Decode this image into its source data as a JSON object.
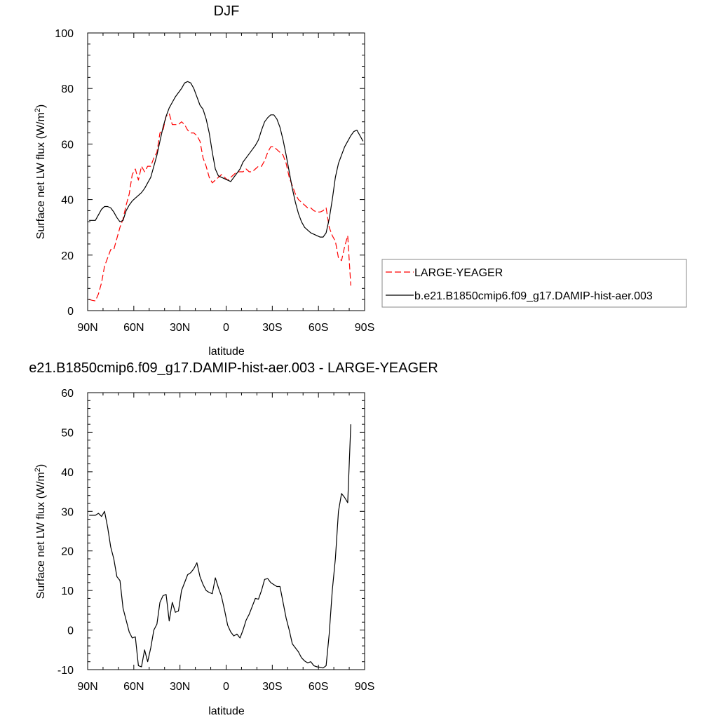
{
  "chart_data": [
    {
      "type": "line",
      "title": "DJF",
      "xlabel": "latitude",
      "ylabel": "Surface net LW flux (W/m²)",
      "ylabel_main": "Surface net LW flux (W/m",
      "ylabel_sup": "2",
      "ylabel_end": ")",
      "xlim": [
        90,
        -90
      ],
      "ylim": [
        0,
        100
      ],
      "x_ticks": [
        90,
        60,
        30,
        0,
        -30,
        -60,
        -90
      ],
      "x_tick_labels": [
        "90N",
        "60N",
        "30N",
        "0",
        "30S",
        "60S",
        "90S"
      ],
      "y_ticks": [
        0,
        20,
        40,
        60,
        80,
        100
      ],
      "y_tick_labels": [
        "0",
        "20",
        "40",
        "60",
        "80",
        "100"
      ],
      "legend_position": "right",
      "series": [
        {
          "name": "LARGE-YEAGER",
          "style": "dashed",
          "color": "#ff0000",
          "points": [
            [
              89,
              4
            ],
            [
              87,
              3.7
            ],
            [
              85,
              3.5
            ],
            [
              83,
              6
            ],
            [
              81,
              10
            ],
            [
              79,
              16
            ],
            [
              77,
              19
            ],
            [
              75,
              22
            ],
            [
              73,
              22
            ],
            [
              71,
              26
            ],
            [
              69,
              30
            ],
            [
              67,
              33
            ],
            [
              65,
              38
            ],
            [
              63,
              42
            ],
            [
              61,
              49
            ],
            [
              59,
              51
            ],
            [
              57,
              47
            ],
            [
              55,
              52
            ],
            [
              53,
              50
            ],
            [
              51,
              52
            ],
            [
              49,
              52
            ],
            [
              47,
              55
            ],
            [
              45,
              57
            ],
            [
              43,
              64
            ],
            [
              41,
              65
            ],
            [
              39,
              70
            ],
            [
              37,
              71
            ],
            [
              35,
              67
            ],
            [
              33,
              67
            ],
            [
              31,
              67
            ],
            [
              29,
              68
            ],
            [
              27,
              67
            ],
            [
              25,
              65
            ],
            [
              23,
              64
            ],
            [
              21,
              64
            ],
            [
              19,
              63
            ],
            [
              17,
              61
            ],
            [
              15,
              55
            ],
            [
              13,
              52
            ],
            [
              11,
              48
            ],
            [
              9,
              46
            ],
            [
              7,
              47
            ],
            [
              5,
              48
            ],
            [
              3,
              49
            ],
            [
              1,
              48
            ],
            [
              -1,
              47
            ],
            [
              -3,
              48
            ],
            [
              -5,
              49
            ],
            [
              -7,
              50
            ],
            [
              -9,
              50
            ],
            [
              -11,
              50
            ],
            [
              -13,
              51
            ],
            [
              -15,
              50
            ],
            [
              -17,
              50
            ],
            [
              -19,
              51
            ],
            [
              -21,
              52
            ],
            [
              -23,
              52
            ],
            [
              -25,
              54
            ],
            [
              -27,
              57
            ],
            [
              -29,
              59
            ],
            [
              -31,
              59
            ],
            [
              -33,
              58
            ],
            [
              -35,
              57
            ],
            [
              -37,
              56
            ],
            [
              -39,
              53
            ],
            [
              -41,
              48
            ],
            [
              -43,
              45
            ],
            [
              -45,
              42
            ],
            [
              -47,
              40
            ],
            [
              -49,
              39
            ],
            [
              -51,
              38
            ],
            [
              -53,
              37
            ],
            [
              -55,
              37
            ],
            [
              -57,
              36
            ],
            [
              -59,
              35.5
            ],
            [
              -61,
              35.5
            ],
            [
              -63,
              36
            ],
            [
              -65,
              37
            ],
            [
              -67,
              30
            ],
            [
              -69,
              27
            ],
            [
              -71,
              25
            ],
            [
              -73,
              19
            ],
            [
              -75,
              18
            ],
            [
              -77,
              23
            ],
            [
              -79,
              27
            ],
            [
              -81,
              9
            ]
          ]
        },
        {
          "name": "b.e21.B1850cmip6.f09_g17.DAMIP-hist-aer.003",
          "style": "solid",
          "color": "#000000",
          "points": [
            [
              89,
              32.5
            ],
            [
              85,
              32.5
            ],
            [
              83,
              34.5
            ],
            [
              81,
              36.5
            ],
            [
              79,
              37.5
            ],
            [
              77,
              37.5
            ],
            [
              75,
              37
            ],
            [
              73,
              35.5
            ],
            [
              71,
              33.5
            ],
            [
              69,
              32
            ],
            [
              67,
              32.5
            ],
            [
              65,
              36
            ],
            [
              63,
              38
            ],
            [
              61,
              39.5
            ],
            [
              59,
              40.5
            ],
            [
              57,
              41.5
            ],
            [
              55,
              42.5
            ],
            [
              53,
              44
            ],
            [
              51,
              46
            ],
            [
              49,
              48
            ],
            [
              47,
              52
            ],
            [
              45,
              56
            ],
            [
              43,
              61
            ],
            [
              41,
              66
            ],
            [
              39,
              70
            ],
            [
              37,
              73
            ],
            [
              35,
              75
            ],
            [
              33,
              77
            ],
            [
              31,
              78.5
            ],
            [
              29,
              80
            ],
            [
              27,
              82
            ],
            [
              25,
              82.5
            ],
            [
              23,
              82
            ],
            [
              21,
              80
            ],
            [
              19,
              77
            ],
            [
              17,
              74
            ],
            [
              15,
              72.5
            ],
            [
              13,
              69
            ],
            [
              11,
              64
            ],
            [
              9,
              57
            ],
            [
              7,
              51
            ],
            [
              5,
              48.5
            ],
            [
              3,
              48
            ],
            [
              1,
              47.5
            ],
            [
              -1,
              47
            ],
            [
              -3,
              46.5
            ],
            [
              -5,
              48
            ],
            [
              -7,
              49.5
            ],
            [
              -9,
              51
            ],
            [
              -11,
              53.5
            ],
            [
              -13,
              55
            ],
            [
              -15,
              56.5
            ],
            [
              -17,
              58
            ],
            [
              -19,
              59.5
            ],
            [
              -21,
              61.5
            ],
            [
              -23,
              65
            ],
            [
              -25,
              68
            ],
            [
              -27,
              69.5
            ],
            [
              -29,
              70.5
            ],
            [
              -31,
              70.5
            ],
            [
              -33,
              69
            ],
            [
              -35,
              66
            ],
            [
              -37,
              61.5
            ],
            [
              -39,
              56
            ],
            [
              -41,
              50
            ],
            [
              -43,
              44
            ],
            [
              -45,
              39
            ],
            [
              -47,
              35
            ],
            [
              -49,
              32
            ],
            [
              -51,
              30
            ],
            [
              -53,
              29
            ],
            [
              -55,
              28
            ],
            [
              -57,
              27.5
            ],
            [
              -59,
              27
            ],
            [
              -61,
              26.5
            ],
            [
              -63,
              26.5
            ],
            [
              -65,
              28
            ],
            [
              -67,
              33
            ],
            [
              -69,
              40
            ],
            [
              -71,
              48
            ],
            [
              -73,
              53
            ],
            [
              -75,
              56
            ],
            [
              -77,
              59
            ],
            [
              -79,
              61
            ],
            [
              -81,
              63
            ],
            [
              -83,
              64.5
            ],
            [
              -85,
              65
            ],
            [
              -87,
              63
            ],
            [
              -89,
              61
            ]
          ]
        }
      ]
    },
    {
      "type": "line",
      "title": "e21.B1850cmip6.f09_g17.DAMIP-hist-aer.003 - LARGE-YEAGER",
      "xlabel": "latitude",
      "ylabel": "Surface net LW flux (W/m²)",
      "ylabel_main": "Surface net LW flux (W/m",
      "ylabel_sup": "2",
      "ylabel_end": ")",
      "xlim": [
        90,
        -90
      ],
      "ylim": [
        -10,
        60
      ],
      "x_ticks": [
        90,
        60,
        30,
        0,
        -30,
        -60,
        -90
      ],
      "x_tick_labels": [
        "90N",
        "60N",
        "30N",
        "0",
        "30S",
        "60S",
        "90S"
      ],
      "y_ticks": [
        -10,
        0,
        10,
        20,
        30,
        40,
        50,
        60
      ],
      "y_tick_labels": [
        "-10",
        "0",
        "10",
        "20",
        "30",
        "40",
        "50",
        "60"
      ],
      "series": [
        {
          "style": "solid",
          "color": "#000000",
          "points": [
            [
              89,
              29
            ],
            [
              85,
              29
            ],
            [
              83,
              29.5
            ],
            [
              81,
              28.7
            ],
            [
              79,
              30
            ],
            [
              77,
              26
            ],
            [
              75,
              21
            ],
            [
              73,
              18
            ],
            [
              71,
              13.5
            ],
            [
              69,
              12.5
            ],
            [
              67,
              5.5
            ],
            [
              65,
              2.5
            ],
            [
              63,
              -0.5
            ],
            [
              61,
              -2
            ],
            [
              59,
              -1.7
            ],
            [
              57,
              -9
            ],
            [
              55,
              -9.3
            ],
            [
              53,
              -5
            ],
            [
              51,
              -8
            ],
            [
              49,
              -4.5
            ],
            [
              47,
              0
            ],
            [
              45,
              1.5
            ],
            [
              43,
              7
            ],
            [
              41,
              8.7
            ],
            [
              39,
              9
            ],
            [
              37,
              2.3
            ],
            [
              35,
              7
            ],
            [
              33,
              4.5
            ],
            [
              31,
              4.8
            ],
            [
              29,
              10
            ],
            [
              27,
              12
            ],
            [
              25,
              14
            ],
            [
              23,
              14.5
            ],
            [
              21,
              15.5
            ],
            [
              19,
              17
            ],
            [
              17,
              13.5
            ],
            [
              15,
              11.5
            ],
            [
              13,
              10
            ],
            [
              11,
              9.5
            ],
            [
              9,
              9.2
            ],
            [
              7,
              13.2
            ],
            [
              5,
              10.7
            ],
            [
              3,
              8.5
            ],
            [
              1,
              5
            ],
            [
              -1,
              1.2
            ],
            [
              -3,
              -0.5
            ],
            [
              -5,
              -1.5
            ],
            [
              -7,
              -1
            ],
            [
              -9,
              -2
            ],
            [
              -11,
              0
            ],
            [
              -13,
              2.5
            ],
            [
              -15,
              4
            ],
            [
              -17,
              6
            ],
            [
              -19,
              8
            ],
            [
              -21,
              7.8
            ],
            [
              -23,
              10
            ],
            [
              -25,
              12.8
            ],
            [
              -27,
              13
            ],
            [
              -29,
              12
            ],
            [
              -31,
              11.5
            ],
            [
              -33,
              11
            ],
            [
              -35,
              11
            ],
            [
              -37,
              7
            ],
            [
              -39,
              3
            ],
            [
              -41,
              0
            ],
            [
              -43,
              -3.5
            ],
            [
              -45,
              -4.5
            ],
            [
              -47,
              -5.5
            ],
            [
              -49,
              -7
            ],
            [
              -51,
              -7.8
            ],
            [
              -53,
              -8.3
            ],
            [
              -55,
              -8
            ],
            [
              -57,
              -9
            ],
            [
              -59,
              -9.3
            ],
            [
              -61,
              -9.4
            ],
            [
              -63,
              -9.6
            ],
            [
              -65,
              -9
            ],
            [
              -67,
              -1
            ],
            [
              -69,
              10
            ],
            [
              -71,
              18
            ],
            [
              -73,
              30
            ],
            [
              -75,
              34.5
            ],
            [
              -77,
              33.5
            ],
            [
              -79,
              32.2
            ],
            [
              -81,
              52
            ]
          ]
        }
      ]
    }
  ]
}
